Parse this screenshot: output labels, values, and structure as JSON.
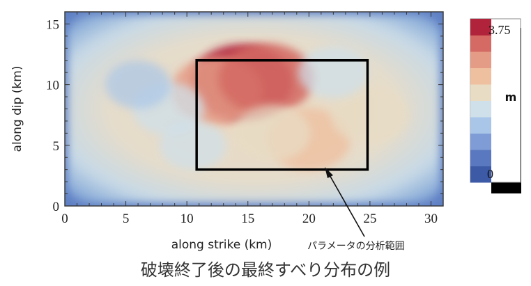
{
  "chart_data": {
    "type": "heatmap",
    "title": "",
    "xlabel": "along strike (km)",
    "ylabel": "along dip (km)",
    "xlim": [
      0,
      31
    ],
    "ylim": [
      0,
      16
    ],
    "x_ticks": [
      "0",
      "5",
      "10",
      "15",
      "20",
      "25",
      "30"
    ],
    "y_ticks": [
      "0",
      "5",
      "10",
      "15"
    ],
    "colorbar": {
      "min_label": "0",
      "max_label": "3.75",
      "unit": "m",
      "min": 0,
      "max": 3.75,
      "colors": [
        "#3d5aa6",
        "#5a78c0",
        "#7f9cd6",
        "#a9c6e8",
        "#cfe0ea",
        "#e8dcc4",
        "#efc0a0",
        "#e59c86",
        "#d46a63",
        "#b0233a"
      ]
    },
    "slip_patches": [
      {
        "x": 14.5,
        "y": 10.2,
        "value": 3.6
      },
      {
        "x": 12.5,
        "y": 9.5,
        "value": 3.0
      },
      {
        "x": 16.5,
        "y": 10.5,
        "value": 3.2
      },
      {
        "x": 20.0,
        "y": 5.5,
        "value": 2.5
      },
      {
        "x": 17.0,
        "y": 6.0,
        "value": 2.1
      },
      {
        "x": 25.0,
        "y": 7.5,
        "value": 2.2
      },
      {
        "x": 22.0,
        "y": 11.0,
        "value": 1.7
      },
      {
        "x": 8.5,
        "y": 8.0,
        "value": 1.8
      },
      {
        "x": 10.5,
        "y": 5.0,
        "value": 1.5
      },
      {
        "x": 6.0,
        "y": 10.0,
        "value": 1.4
      }
    ],
    "analysis_region": {
      "x": [
        10.8,
        24.8
      ],
      "y": [
        3.0,
        12.0
      ]
    },
    "annotation": "パラメータの分析範囲"
  },
  "caption": "破壊終了後の最終すべり分布の例"
}
